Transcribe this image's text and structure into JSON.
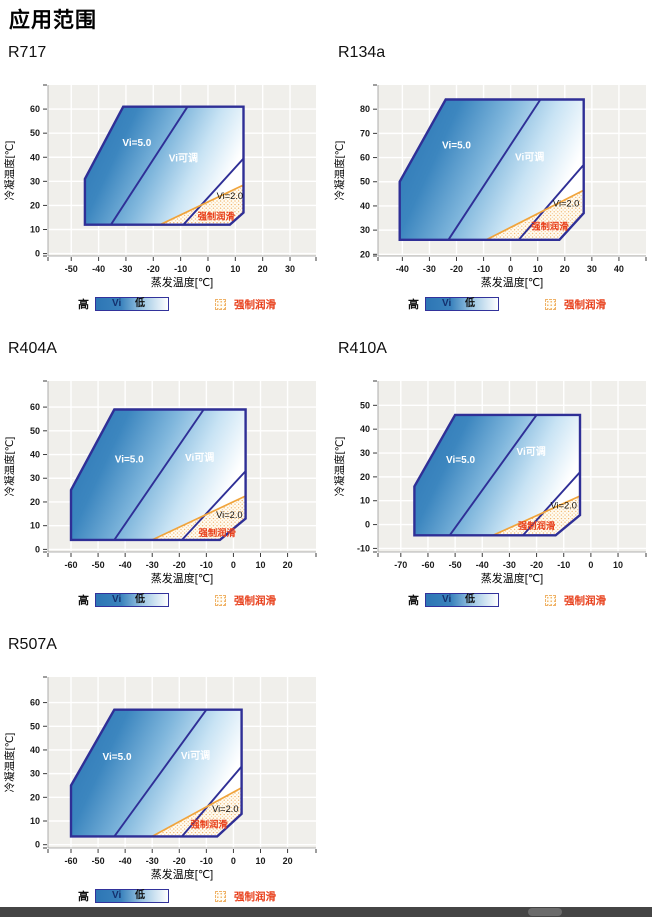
{
  "page": {
    "title": "应用范围"
  },
  "axis": {
    "x_label": "蒸发温度[℃]",
    "y_label": "冷凝温度[℃]"
  },
  "legend": {
    "high": "高",
    "vi": "Vi",
    "low": "低",
    "forced": "强制润滑"
  },
  "colors": {
    "navy": "#2f2f96",
    "orange_line": "#f0a43c",
    "forced_text": "#e8401c",
    "plot_bg": "#f0efeb",
    "grid": "#ffffff",
    "blue_dark": "#2c75b4",
    "blue_light": "#ffffff",
    "dot_fill": "#f0ad5f",
    "tick_text": "#1b1b1b"
  },
  "chart_data": [
    {
      "type": "area",
      "name": "R717",
      "xlabel": "蒸发温度[℃]",
      "ylabel": "冷凝温度[℃]",
      "x_ticks": [
        -50,
        -40,
        -30,
        -20,
        -10,
        0,
        10,
        20,
        30
      ],
      "y_ticks": [
        0,
        10,
        20,
        30,
        40,
        50,
        60
      ],
      "x_range": [
        -58.5,
        39.5
      ],
      "y_range": [
        -1,
        70
      ],
      "envelope": [
        [
          -45,
          12
        ],
        [
          -45,
          31
        ],
        [
          -31,
          61
        ],
        [
          13,
          61
        ],
        [
          13,
          17
        ],
        [
          8,
          12
        ]
      ],
      "vi_divider": [
        [
          -35.5,
          12
        ],
        [
          -7.5,
          61
        ]
      ],
      "vi2_divider": [
        [
          -9,
          12
        ],
        [
          13,
          39.5
        ]
      ],
      "forced_line": [
        [
          -17.5,
          12
        ],
        [
          13,
          28.5
        ]
      ],
      "forced_region": [
        [
          -17.5,
          12
        ],
        [
          13,
          28.5
        ],
        [
          13,
          17
        ],
        [
          8,
          12
        ]
      ],
      "labels": [
        {
          "text": "Vi=5.0",
          "x": -26,
          "y": 46,
          "color": "white"
        },
        {
          "text": "Vi可调",
          "x": -9,
          "y": 39.5,
          "color": "white"
        },
        {
          "text": "Vi=2.0",
          "x": 8,
          "y": 24,
          "color": "black"
        },
        {
          "text": "强制润滑",
          "x": 3,
          "y": 15.5,
          "color": "red"
        }
      ]
    },
    {
      "type": "area",
      "name": "R134a",
      "xlabel": "蒸发温度[℃]",
      "ylabel": "冷凝温度[℃]",
      "x_ticks": [
        -40,
        -30,
        -20,
        -10,
        0,
        10,
        20,
        30,
        40
      ],
      "y_ticks": [
        20,
        30,
        40,
        50,
        60,
        70,
        80
      ],
      "x_range": [
        -49,
        50
      ],
      "y_range": [
        19.3,
        90
      ],
      "envelope": [
        [
          -41,
          26
        ],
        [
          -41,
          50
        ],
        [
          -24,
          84
        ],
        [
          27,
          84
        ],
        [
          27,
          37
        ],
        [
          18,
          26
        ]
      ],
      "vi_divider": [
        [
          -23,
          26
        ],
        [
          11,
          84
        ]
      ],
      "vi2_divider": [
        [
          3,
          26
        ],
        [
          27,
          57
        ]
      ],
      "forced_line": [
        [
          -9,
          26
        ],
        [
          27,
          46.5
        ]
      ],
      "forced_region": [
        [
          -9,
          26
        ],
        [
          27,
          46.5
        ],
        [
          27,
          37
        ],
        [
          18,
          26
        ]
      ],
      "labels": [
        {
          "text": "Vi=5.0",
          "x": -20,
          "y": 65,
          "color": "white"
        },
        {
          "text": "Vi可调",
          "x": 7,
          "y": 60,
          "color": "white"
        },
        {
          "text": "Vi=2.0",
          "x": 20.5,
          "y": 41,
          "color": "black"
        },
        {
          "text": "强制润滑",
          "x": 14.5,
          "y": 31.5,
          "color": "red"
        }
      ]
    },
    {
      "type": "area",
      "name": "R404A",
      "xlabel": "蒸发温度[℃]",
      "ylabel": "冷凝温度[℃]",
      "x_ticks": [
        -60,
        -50,
        -40,
        -30,
        -20,
        -10,
        0,
        10,
        20
      ],
      "y_ticks": [
        0,
        10,
        20,
        30,
        40,
        50,
        60
      ],
      "x_range": [
        -68.5,
        30.5
      ],
      "y_range": [
        -1.1,
        71
      ],
      "envelope": [
        [
          -60,
          4
        ],
        [
          -60,
          25
        ],
        [
          -44,
          59
        ],
        [
          4.5,
          59
        ],
        [
          4.5,
          13
        ],
        [
          -5,
          4
        ]
      ],
      "vi_divider": [
        [
          -44,
          4
        ],
        [
          -11,
          59
        ]
      ],
      "vi2_divider": [
        [
          -19,
          4
        ],
        [
          4.5,
          33
        ]
      ],
      "forced_line": [
        [
          -30,
          4
        ],
        [
          4.5,
          22.5
        ]
      ],
      "forced_region": [
        [
          -30,
          4
        ],
        [
          4.5,
          22.5
        ],
        [
          4.5,
          13
        ],
        [
          -5,
          4
        ]
      ],
      "labels": [
        {
          "text": "Vi=5.0",
          "x": -38.5,
          "y": 38,
          "color": "white"
        },
        {
          "text": "Vi可调",
          "x": -12.5,
          "y": 38.5,
          "color": "white"
        },
        {
          "text": "Vi=2.0",
          "x": -1.5,
          "y": 14.5,
          "color": "black"
        },
        {
          "text": "强制润滑",
          "x": -6,
          "y": 7,
          "color": "red"
        }
      ]
    },
    {
      "type": "area",
      "name": "R410A",
      "xlabel": "蒸发温度[℃]",
      "ylabel": "冷凝温度[℃]",
      "x_ticks": [
        -70,
        -60,
        -50,
        -40,
        -30,
        -20,
        -10,
        0,
        10
      ],
      "y_ticks": [
        -10,
        0,
        10,
        20,
        30,
        40,
        50
      ],
      "x_range": [
        -78.4,
        20.3
      ],
      "y_range": [
        -11.5,
        60.2
      ],
      "envelope": [
        [
          -65,
          -4.5
        ],
        [
          -65,
          16
        ],
        [
          -50,
          46
        ],
        [
          -4,
          46
        ],
        [
          -4,
          4
        ],
        [
          -13,
          -4.5
        ]
      ],
      "vi_divider": [
        [
          -52,
          -4.5
        ],
        [
          -20,
          46
        ]
      ],
      "vi2_divider": [
        [
          -25,
          -4.5
        ],
        [
          -4,
          22
        ]
      ],
      "forced_line": [
        [
          -36,
          -4.5
        ],
        [
          -4,
          12
        ]
      ],
      "forced_region": [
        [
          -36,
          -4.5
        ],
        [
          -4,
          12
        ],
        [
          -4,
          4
        ],
        [
          -13,
          -4.5
        ]
      ],
      "labels": [
        {
          "text": "Vi=5.0",
          "x": -48,
          "y": 27,
          "color": "white"
        },
        {
          "text": "Vi可调",
          "x": -22,
          "y": 30.5,
          "color": "white"
        },
        {
          "text": "Vi=2.0",
          "x": -10,
          "y": 8,
          "color": "black"
        },
        {
          "text": "强制润滑",
          "x": -20,
          "y": -0.5,
          "color": "red"
        }
      ]
    },
    {
      "type": "area",
      "name": "R507A",
      "xlabel": "蒸发温度[℃]",
      "ylabel": "冷凝温度[℃]",
      "x_ticks": [
        -60,
        -50,
        -40,
        -30,
        -20,
        -10,
        0,
        10,
        20
      ],
      "y_ticks": [
        0,
        10,
        20,
        30,
        40,
        50,
        60
      ],
      "x_range": [
        -68.5,
        30.5
      ],
      "y_range": [
        -1.4,
        70.8
      ],
      "envelope": [
        [
          -60,
          3.5
        ],
        [
          -60,
          25
        ],
        [
          -44,
          57
        ],
        [
          3,
          57
        ],
        [
          3,
          13
        ],
        [
          -6,
          3.5
        ]
      ],
      "vi_divider": [
        [
          -44,
          3.5
        ],
        [
          -10,
          57
        ]
      ],
      "vi2_divider": [
        [
          -19,
          3.5
        ],
        [
          3,
          33
        ]
      ],
      "forced_line": [
        [
          -30,
          3.5
        ],
        [
          3,
          24
        ]
      ],
      "forced_region": [
        [
          -30,
          3.5
        ],
        [
          3,
          24
        ],
        [
          3,
          13
        ],
        [
          -6,
          3.5
        ]
      ],
      "labels": [
        {
          "text": "Vi=5.0",
          "x": -43,
          "y": 37,
          "color": "white"
        },
        {
          "text": "Vi可调",
          "x": -14,
          "y": 37.5,
          "color": "white"
        },
        {
          "text": "Vi=2.0",
          "x": -3,
          "y": 15,
          "color": "black"
        },
        {
          "text": "强制润滑",
          "x": -9,
          "y": 8.5,
          "color": "red"
        }
      ]
    }
  ]
}
